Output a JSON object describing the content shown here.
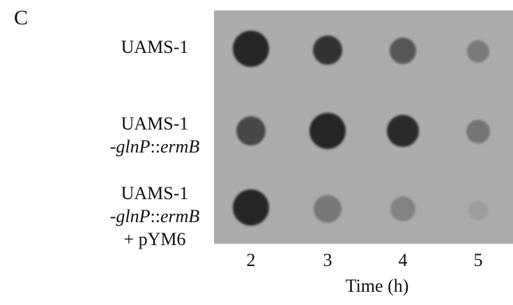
{
  "panel_label": "C",
  "rows": [
    {
      "lines": [
        [
          {
            "text": "UAMS-1"
          }
        ]
      ]
    },
    {
      "lines": [
        [
          {
            "text": "UAMS-1"
          }
        ],
        [
          {
            "text": "-"
          },
          {
            "text": "glnP",
            "italic": true
          },
          {
            "text": "::"
          },
          {
            "text": "ermB",
            "italic": true
          }
        ]
      ]
    },
    {
      "lines": [
        [
          {
            "text": "UAMS-1"
          }
        ],
        [
          {
            "text": "-"
          },
          {
            "text": "glnP",
            "italic": true
          },
          {
            "text": "::"
          },
          {
            "text": "ermB",
            "italic": true
          }
        ],
        [
          {
            "text": "+ pYM6"
          }
        ]
      ]
    }
  ],
  "columns": [
    "2",
    "3",
    "4",
    "5"
  ],
  "x_axis_label": "Time (h)"
}
